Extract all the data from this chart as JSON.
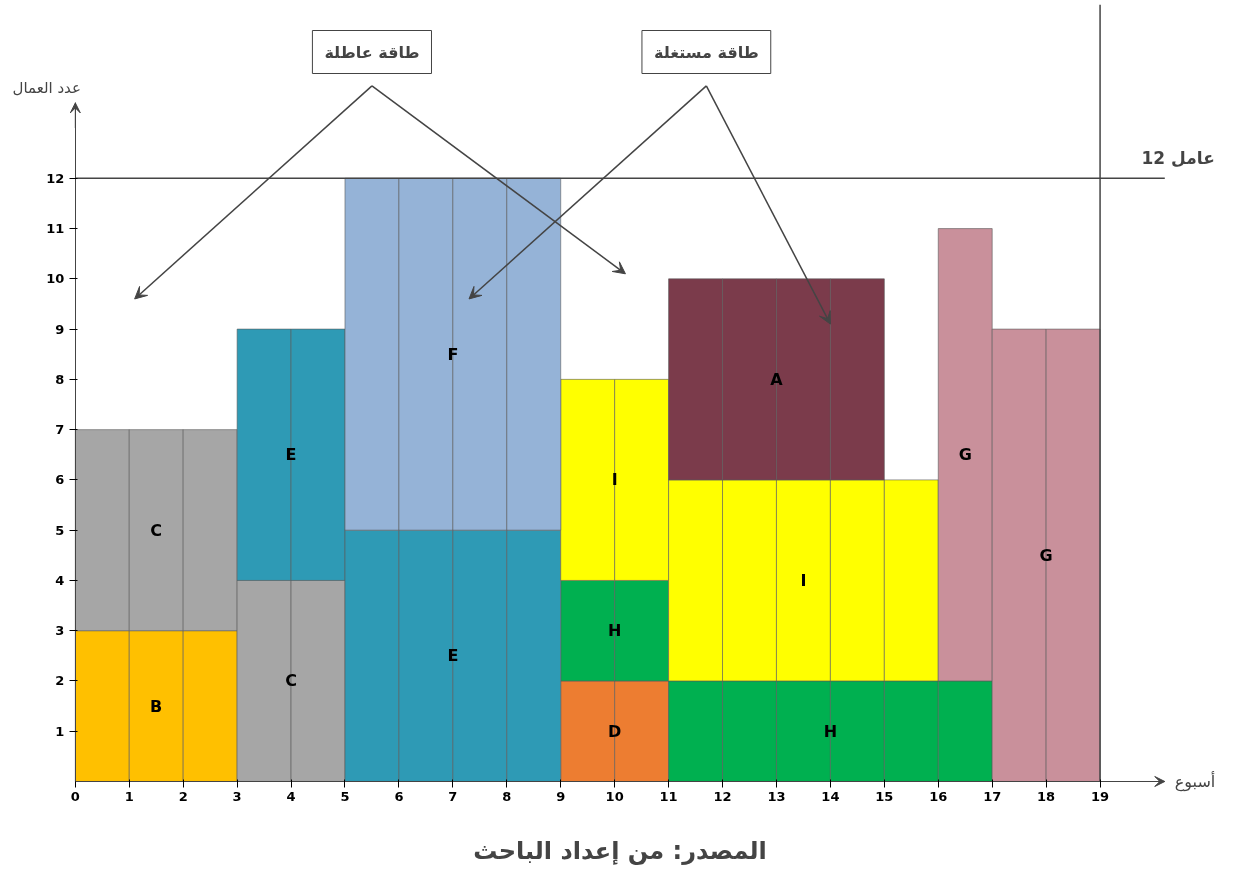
{
  "chart_data": {
    "type": "bar",
    "stacked": true,
    "x": [
      0.5,
      1.5,
      2.5,
      3.5,
      4.5,
      5.5,
      6.5,
      7.5,
      8.5,
      9.5,
      10.5,
      11.5,
      12.5,
      13.5,
      14.5,
      15.5,
      16.5,
      17.5,
      18.5
    ],
    "series": [
      {
        "name": "B",
        "color": "#ffc000",
        "values": [
          3,
          3,
          3,
          null,
          null,
          null,
          null,
          null,
          null,
          null,
          null,
          null,
          null,
          null,
          null,
          null,
          null,
          null,
          null
        ]
      },
      {
        "name": "D",
        "color": "#ed7d31",
        "values": [
          null,
          null,
          null,
          null,
          null,
          null,
          null,
          null,
          null,
          2,
          2,
          null,
          null,
          null,
          null,
          null,
          null,
          null,
          null
        ]
      },
      {
        "name": "H",
        "color": "#00b050",
        "values": [
          null,
          null,
          null,
          null,
          null,
          null,
          null,
          null,
          null,
          2,
          2,
          2,
          2,
          2,
          2,
          2,
          2,
          null,
          null
        ]
      },
      {
        "name": "C",
        "color": "#a6a6a6",
        "values": [
          4,
          4,
          4,
          4,
          4,
          null,
          null,
          null,
          null,
          null,
          null,
          null,
          null,
          null,
          null,
          null,
          null,
          null,
          null
        ]
      },
      {
        "name": "E",
        "color": "#2e9ab5",
        "values": [
          null,
          null,
          null,
          5,
          5,
          5,
          5,
          5,
          5,
          null,
          null,
          null,
          null,
          null,
          null,
          null,
          null,
          null,
          null
        ]
      },
      {
        "name": "I",
        "color": "#ffff00",
        "values": [
          null,
          null,
          null,
          null,
          null,
          null,
          null,
          null,
          null,
          4,
          4,
          4,
          4,
          4,
          4,
          4,
          null,
          null,
          null
        ]
      },
      {
        "name": "F",
        "color": "#95b3d7",
        "values": [
          null,
          null,
          null,
          null,
          null,
          7,
          7,
          7,
          7,
          null,
          null,
          null,
          null,
          null,
          null,
          null,
          null,
          null,
          null
        ]
      },
      {
        "name": "G",
        "color": "#c9909b",
        "values": [
          null,
          null,
          null,
          null,
          null,
          null,
          null,
          null,
          null,
          null,
          null,
          null,
          null,
          null,
          null,
          null,
          9,
          9,
          9
        ]
      },
      {
        "name": "A",
        "color": "#7b3b4b",
        "values": [
          null,
          null,
          null,
          null,
          null,
          null,
          null,
          null,
          null,
          null,
          null,
          4,
          4,
          4,
          4,
          null,
          null,
          null,
          null
        ]
      }
    ],
    "xlabel": "أسبوع",
    "ylabel": "عدد العمال",
    "xlim": [
      0,
      20.2
    ],
    "xticks": [
      0,
      1,
      2,
      3,
      4,
      5,
      6,
      7,
      8,
      9,
      10,
      11,
      12,
      13,
      14,
      15,
      16,
      17,
      18,
      19
    ],
    "ylim": [
      0,
      13.5
    ],
    "yticks": [
      1,
      2,
      3,
      4,
      5,
      6,
      7,
      8,
      9,
      10,
      11,
      12
    ],
    "grid": false,
    "legend": false,
    "ref_lines": [
      {
        "axis": "y",
        "value": 12,
        "label": "12 عامل"
      },
      {
        "axis": "x",
        "value": 19
      }
    ],
    "annotations": [
      "طاقة عاطلة",
      "طاقة مستغلة",
      "المصدر: من إعداد الباحث"
    ]
  }
}
